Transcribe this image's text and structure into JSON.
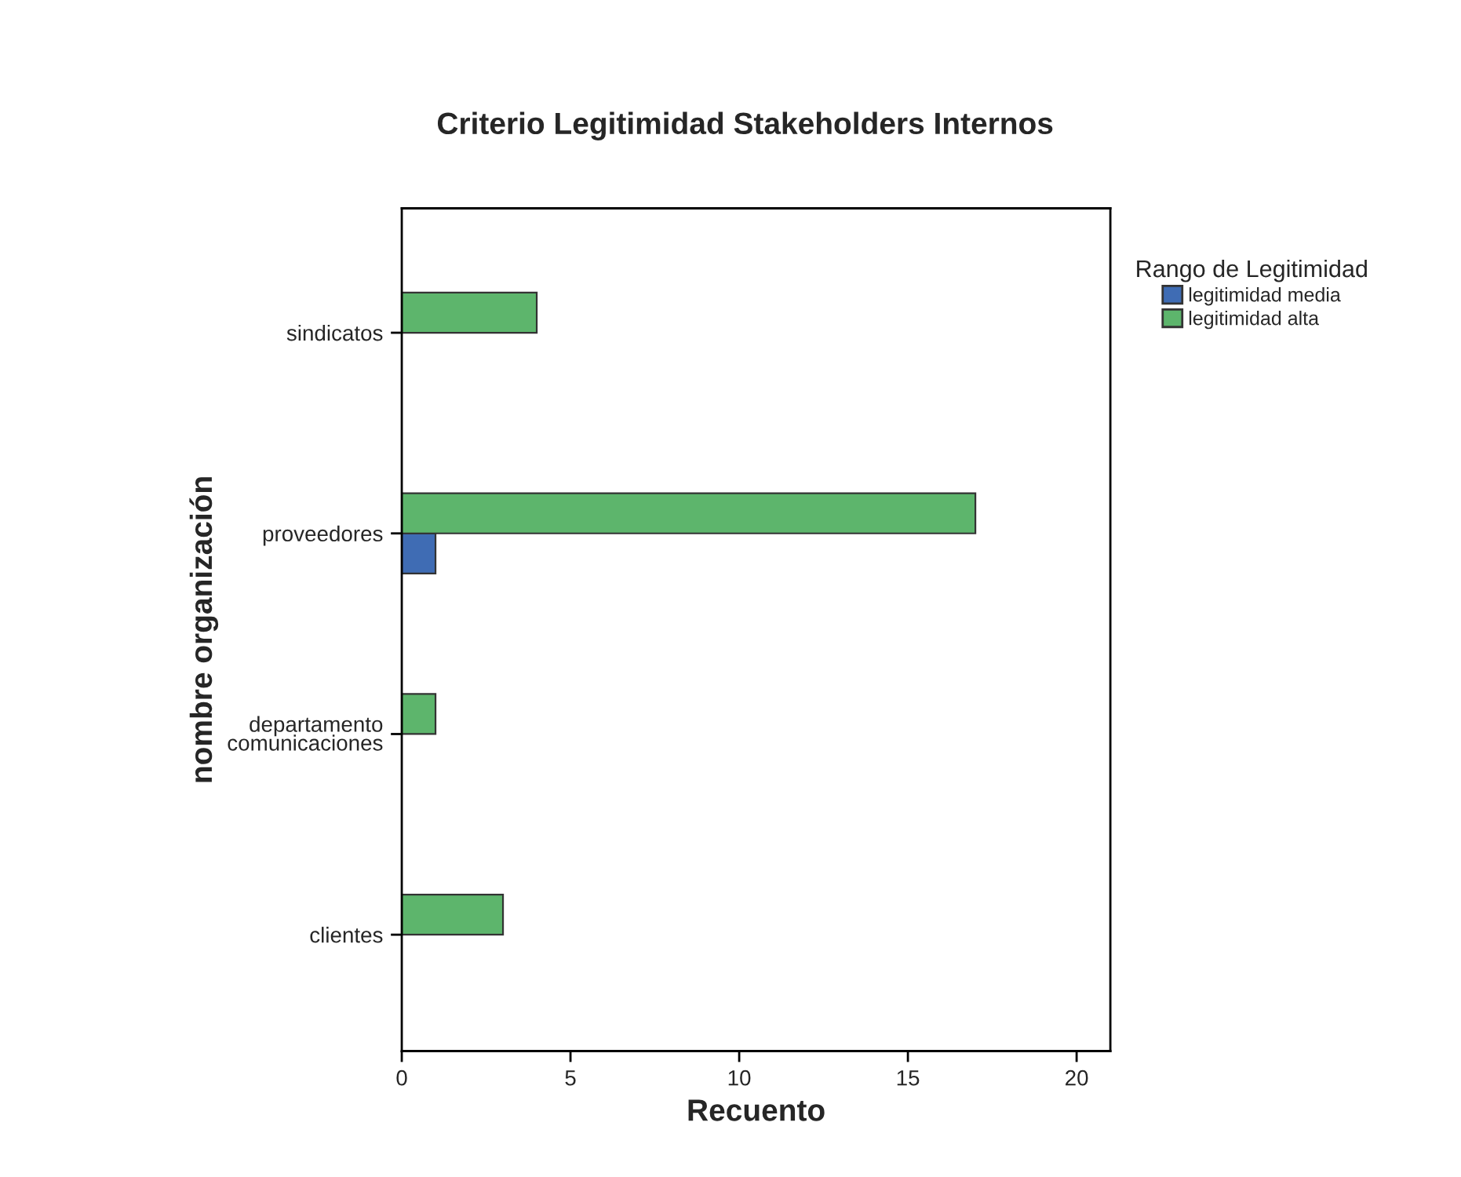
{
  "chart_data": {
    "type": "bar",
    "orientation": "horizontal",
    "title": "Criterio Legitimidad Stakeholders Internos",
    "xlabel": "Recuento",
    "ylabel": "nombre organización",
    "legend_title": "Rango de Legitimidad",
    "legend": "top right",
    "grid": false,
    "categories": [
      "sindicatos",
      "proveedores",
      "departamento\ncomunicaciones",
      "clientes"
    ],
    "series": [
      {
        "name": "legitimidad media",
        "color": "#3f6cb4",
        "values": [
          null,
          1,
          null,
          null
        ]
      },
      {
        "name": "legitimidad alta",
        "color": "#5db56c",
        "values": [
          4,
          17,
          1,
          3
        ]
      }
    ],
    "xlim": [
      0,
      21
    ],
    "xticks": [
      0,
      5,
      10,
      15,
      20
    ]
  }
}
